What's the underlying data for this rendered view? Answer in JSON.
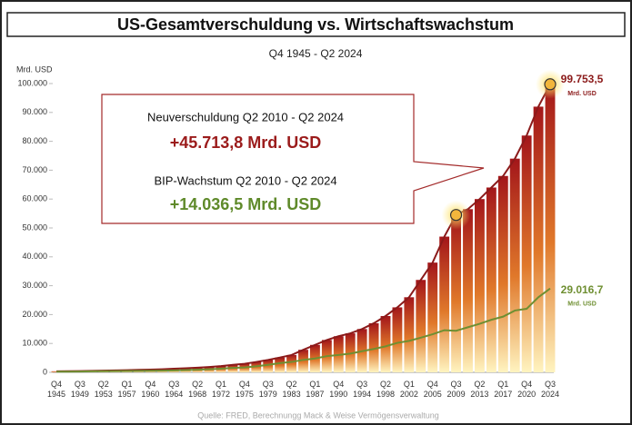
{
  "chart_data": {
    "type": "bar",
    "title": "US-Gesamtverschuldung vs. Wirtschaftswachstum",
    "subtitle": "Q4 1945 - Q2 2024",
    "y_label": "Mrd. USD",
    "source": "Quelle: FRED, Berechnungg Mack & Weise Vermögensverwaltung",
    "annotations": [
      "Neuverschuldung Q2 2010 - Q2 2024",
      "+45.713,8 Mrd. USD",
      "BIP-Wachstum Q2 2010 - Q2 2024",
      "+14.036,5 Mrd. USD"
    ],
    "unit_label": "Mrd. USD",
    "categories": [
      "Q4\n1945",
      null,
      "Q3\n1949",
      null,
      "Q2\n1953",
      null,
      "Q1\n1957",
      null,
      "Q4\n1960",
      null,
      "Q3\n1964",
      null,
      "Q2\n1968",
      null,
      "Q1\n1972",
      null,
      "Q4\n1975",
      null,
      "Q3\n1979",
      null,
      "Q2\n1983",
      null,
      "Q1\n1987",
      null,
      "Q4\n1990",
      null,
      "Q3\n1994",
      null,
      "Q2\n1998",
      null,
      "Q1\n2002",
      null,
      "Q4\n2005",
      null,
      "Q3\n2009",
      null,
      "Q2\n2013",
      null,
      "Q1\n2017",
      null,
      "Q4\n2020",
      null,
      "Q3\n2024"
    ],
    "series": [
      {
        "name": "US-Gesamtverschuldung",
        "color": "#8b1a1a",
        "values": [
          360,
          380,
          420,
          500,
          580,
          680,
          760,
          860,
          950,
          1080,
          1250,
          1420,
          1600,
          1850,
          2150,
          2600,
          2950,
          3600,
          4300,
          5100,
          6000,
          7800,
          9500,
          11200,
          12500,
          13500,
          15000,
          17000,
          19500,
          22500,
          26000,
          32000,
          38000,
          47000,
          54500,
          56500,
          60000,
          64000,
          68000,
          74000,
          82000,
          92000,
          99753.5
        ],
        "value_labels": [
          null,
          null,
          null,
          null,
          null,
          null,
          null,
          null,
          null,
          null,
          null,
          null,
          null,
          null,
          null,
          null,
          null,
          null,
          null,
          null,
          null,
          null,
          null,
          null,
          null,
          null,
          null,
          null,
          null,
          null,
          null,
          null,
          null,
          null,
          null,
          null,
          null,
          null,
          null,
          null,
          null,
          null,
          "99.753,5"
        ]
      },
      {
        "name": "BIP",
        "color": "#6f8f32",
        "values": [
          225,
          250,
          270,
          350,
          390,
          420,
          470,
          510,
          540,
          600,
          680,
          800,
          920,
          1070,
          1270,
          1550,
          1700,
          2100,
          2600,
          3200,
          3600,
          4300,
          4800,
          5600,
          6000,
          6500,
          7300,
          8100,
          9000,
          10200,
          10900,
          12000,
          13200,
          14600,
          14400,
          15600,
          16800,
          18200,
          19300,
          21400,
          22000,
          26000,
          29016.7
        ],
        "value_labels": [
          null,
          null,
          null,
          null,
          null,
          null,
          null,
          null,
          null,
          null,
          null,
          null,
          null,
          null,
          null,
          null,
          null,
          null,
          null,
          null,
          null,
          null,
          null,
          null,
          null,
          null,
          null,
          null,
          null,
          null,
          null,
          null,
          null,
          null,
          null,
          null,
          null,
          null,
          null,
          null,
          null,
          null,
          "29.016,7"
        ]
      }
    ],
    "ylim": [
      0,
      100000
    ],
    "yticks": [
      0,
      {
        "value": 10000,
        "label": "10.000"
      },
      {
        "value": 20000,
        "label": "20.000"
      },
      {
        "value": 30000,
        "label": "30.000"
      },
      {
        "value": 40000,
        "label": "40.000"
      },
      {
        "value": 50000,
        "label": "50.000"
      },
      {
        "value": 60000,
        "label": "60.000"
      },
      {
        "value": 70000,
        "label": "70.000"
      },
      {
        "value": 80000,
        "label": "80.000"
      },
      {
        "value": 90000,
        "label": "90.000"
      },
      {
        "value": 100000,
        "label": "100.000"
      }
    ],
    "grid": false
  }
}
